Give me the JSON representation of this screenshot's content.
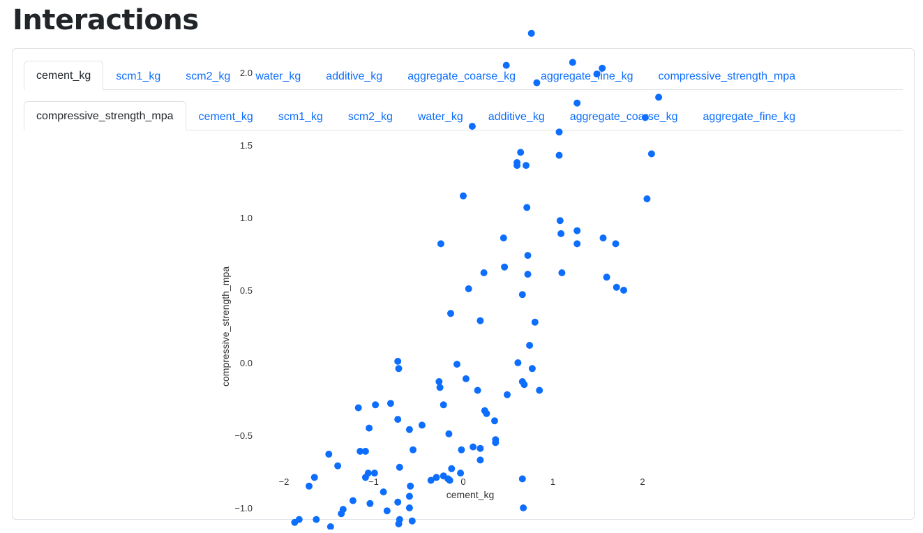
{
  "page": {
    "title": "Interactions"
  },
  "tabs_primary": {
    "active": 0,
    "items": [
      "cement_kg",
      "scm1_kg",
      "scm2_kg",
      "water_kg",
      "additive_kg",
      "aggregate_coarse_kg",
      "aggregate_fine_kg",
      "compressive_strength_mpa"
    ]
  },
  "tabs_secondary": {
    "active": 0,
    "items": [
      "compressive_strength_mpa",
      "cement_kg",
      "scm1_kg",
      "scm2_kg",
      "water_kg",
      "additive_kg",
      "aggregate_coarse_kg",
      "aggregate_fine_kg"
    ]
  },
  "colors": {
    "accent": "#0d6efd",
    "point": "#0d6efd",
    "text": "#212529",
    "border": "#dee2e6"
  },
  "chart_data": {
    "type": "scatter",
    "xlabel": "cement_kg",
    "ylabel": "compressive_strength_mpa",
    "xlim": [
      -2.1,
      2.25
    ],
    "ylim": [
      -1.35,
      2.35
    ],
    "xticks": [
      -2,
      -1,
      0,
      1,
      2
    ],
    "xtick_labels": [
      "−2",
      "−1",
      "0",
      "1",
      "2"
    ],
    "yticks": [
      2.0,
      1.5,
      1.0,
      0.5,
      0.0,
      -0.5,
      -1.0
    ],
    "ytick_labels": [
      "2.0",
      "1.5",
      "1.0",
      "0.5",
      "0.0",
      "−0.5",
      "−1.0"
    ],
    "grid": false,
    "x": [
      -2.03,
      -1.97,
      -1.88,
      -1.83,
      -1.72,
      -1.66,
      -1.7,
      -1.64,
      -1.54,
      -1.5,
      -1.48,
      -1.4,
      -1.36,
      -1.34,
      -1.23,
      -1.21,
      -1.17,
      -1.15,
      -1.09,
      -1.09,
      -1.06,
      -1.05,
      -1.04,
      -1.09,
      -0.99,
      -0.98,
      -0.89,
      -0.85,
      -0.81,
      -0.73,
      -0.72,
      -0.71,
      -0.73,
      -0.72,
      -0.71,
      -0.73,
      -0.6,
      -0.6,
      -0.59,
      -0.6,
      -0.57,
      -0.56,
      -0.46,
      -0.36,
      -0.3,
      -0.27,
      -0.25,
      -0.26,
      -0.22,
      -0.22,
      -0.17,
      -0.16,
      -0.15,
      -0.14,
      -0.13,
      -0.07,
      -0.03,
      -0.02,
      0.0,
      0.03,
      0.06,
      0.11,
      0.1,
      0.16,
      0.19,
      0.19,
      0.19,
      0.23,
      0.24,
      0.26,
      0.35,
      0.36,
      0.36,
      0.36,
      0.45,
      0.46,
      0.49,
      0.48,
      0.6,
      0.61,
      0.6,
      0.64,
      0.66,
      0.66,
      0.66,
      0.67,
      0.68,
      0.7,
      0.71,
      0.72,
      0.72,
      0.74,
      0.77,
      0.8,
      0.82,
      0.85,
      1.07,
      1.07,
      1.08,
      1.09,
      1.1,
      1.27,
      1.27,
      1.27,
      1.49,
      1.55,
      1.56,
      1.6,
      1.7,
      1.71,
      1.79,
      2.03,
      2.05,
      2.1,
      2.18,
      0.76,
      1.22
    ],
    "y": [
      -1.26,
      -1.26,
      -1.1,
      -1.08,
      -0.85,
      -0.79,
      -1.28,
      -1.08,
      -1.22,
      -0.63,
      -1.13,
      -0.71,
      -1.04,
      -1.01,
      -0.95,
      -1.24,
      -0.31,
      -0.61,
      -0.61,
      -0.79,
      -0.76,
      -0.45,
      -0.97,
      -1.25,
      -0.76,
      -0.29,
      -0.89,
      -1.02,
      -0.28,
      -0.39,
      -1.11,
      -0.72,
      0.01,
      -0.04,
      -1.08,
      -0.96,
      -0.46,
      -0.92,
      -0.85,
      -1.0,
      -1.09,
      -0.6,
      -0.43,
      -0.81,
      -0.79,
      -0.13,
      0.82,
      -0.17,
      -0.78,
      -0.29,
      -0.8,
      -0.49,
      -0.81,
      0.34,
      -0.73,
      -0.01,
      -0.76,
      -0.6,
      1.15,
      -0.11,
      0.51,
      -0.58,
      1.63,
      -0.19,
      0.29,
      -0.59,
      -0.67,
      0.62,
      -0.33,
      -0.35,
      -0.4,
      -1.18,
      -0.55,
      -0.53,
      0.86,
      0.66,
      -0.22,
      2.05,
      1.38,
      0.0,
      1.36,
      1.45,
      -0.13,
      0.47,
      -0.8,
      -1.0,
      -0.15,
      1.36,
      1.07,
      0.74,
      0.61,
      0.12,
      -0.04,
      0.28,
      1.93,
      -0.19,
      1.59,
      1.43,
      0.98,
      0.89,
      0.62,
      1.79,
      0.91,
      0.82,
      1.99,
      2.03,
      0.86,
      0.59,
      0.82,
      0.52,
      0.5,
      1.69,
      1.13,
      1.44,
      1.83,
      2.27,
      2.07
    ]
  }
}
